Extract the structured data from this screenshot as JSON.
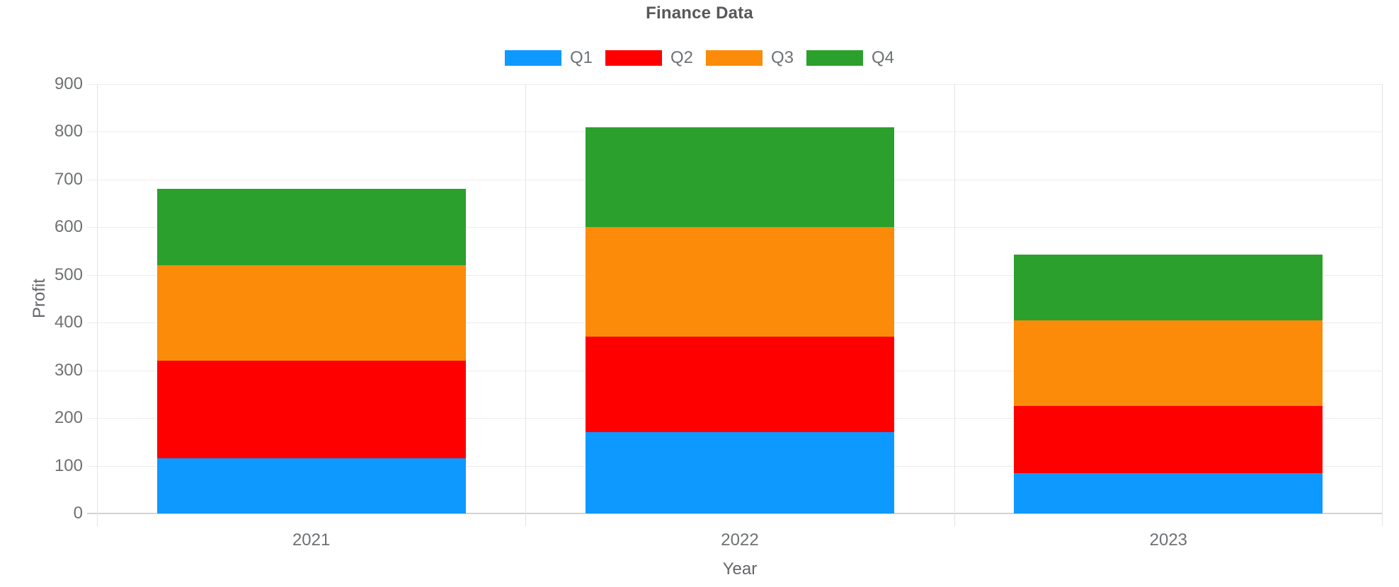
{
  "chart_data": {
    "type": "bar",
    "stacked": true,
    "title": "Finance Data",
    "xlabel": "Year",
    "ylabel": "Profit",
    "categories": [
      "2021",
      "2022",
      "2023"
    ],
    "series": [
      {
        "name": "Q1",
        "color": "#0d99ff",
        "values": [
          115,
          170,
          85
        ]
      },
      {
        "name": "Q2",
        "color": "#ff0000",
        "values": [
          205,
          200,
          140
        ]
      },
      {
        "name": "Q3",
        "color": "#fb8b09",
        "values": [
          200,
          230,
          180
        ]
      },
      {
        "name": "Q4",
        "color": "#2ca02c",
        "values": [
          160,
          210,
          138
        ]
      }
    ],
    "stack_totals": [
      680,
      810,
      543
    ],
    "ylim": [
      0,
      900
    ],
    "y_tick_step": 100,
    "y_tick_labels": [
      "0",
      "100",
      "200",
      "300",
      "400",
      "500",
      "600",
      "700",
      "800",
      "900"
    ],
    "grid": true,
    "legend_position": "top"
  }
}
